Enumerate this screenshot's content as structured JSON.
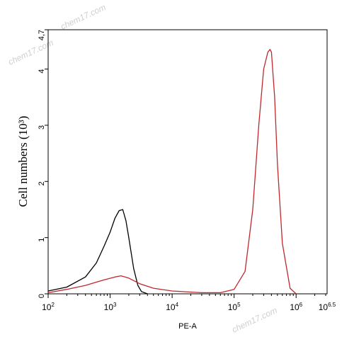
{
  "watermarks": [
    "chem17.com",
    "chem17.com",
    "chem17.com"
  ],
  "chart_data": {
    "type": "line",
    "xlabel": "PE-A",
    "ylabel": "Cell numbers (10³)",
    "xscale": "log",
    "xlim": [
      100,
      3162278
    ],
    "ylim": [
      0,
      4.7
    ],
    "x_ticks": [
      {
        "base": "10",
        "exp": "2",
        "value": 100
      },
      {
        "base": "10",
        "exp": "3",
        "value": 1000
      },
      {
        "base": "10",
        "exp": "4",
        "value": 10000
      },
      {
        "base": "10",
        "exp": "5",
        "value": 100000
      },
      {
        "base": "10",
        "exp": "6",
        "value": 1000000
      },
      {
        "base": "10",
        "exp": "6.5",
        "value": 3162278
      }
    ],
    "y_ticks": [
      "0",
      "1",
      "2",
      "3",
      "4",
      "4,7"
    ],
    "y_tick_values": [
      0,
      1,
      2,
      3,
      4,
      4.7
    ],
    "series": [
      {
        "color": "#000000",
        "x": [
          100,
          200,
          400,
          600,
          800,
          1000,
          1200,
          1400,
          1600,
          1800,
          2000,
          2400,
          2800,
          3200,
          4000
        ],
        "y": [
          0.05,
          0.12,
          0.3,
          0.55,
          0.85,
          1.1,
          1.35,
          1.48,
          1.5,
          1.3,
          1.0,
          0.45,
          0.15,
          0.04,
          0.0
        ]
      },
      {
        "color": "#c0282d",
        "x": [
          100,
          200,
          400,
          800,
          1200,
          1500,
          2000,
          3000,
          5000,
          10000,
          30000,
          60000,
          100000,
          150000,
          200000,
          250000,
          300000,
          350000,
          380000,
          400000,
          450000,
          500000,
          600000,
          800000,
          1000000
        ],
        "y": [
          0.02,
          0.08,
          0.15,
          0.25,
          0.3,
          0.32,
          0.28,
          0.18,
          0.1,
          0.05,
          0.02,
          0.02,
          0.08,
          0.4,
          1.5,
          3.0,
          4.0,
          4.3,
          4.35,
          4.3,
          3.5,
          2.3,
          0.9,
          0.1,
          0.0
        ]
      }
    ]
  }
}
